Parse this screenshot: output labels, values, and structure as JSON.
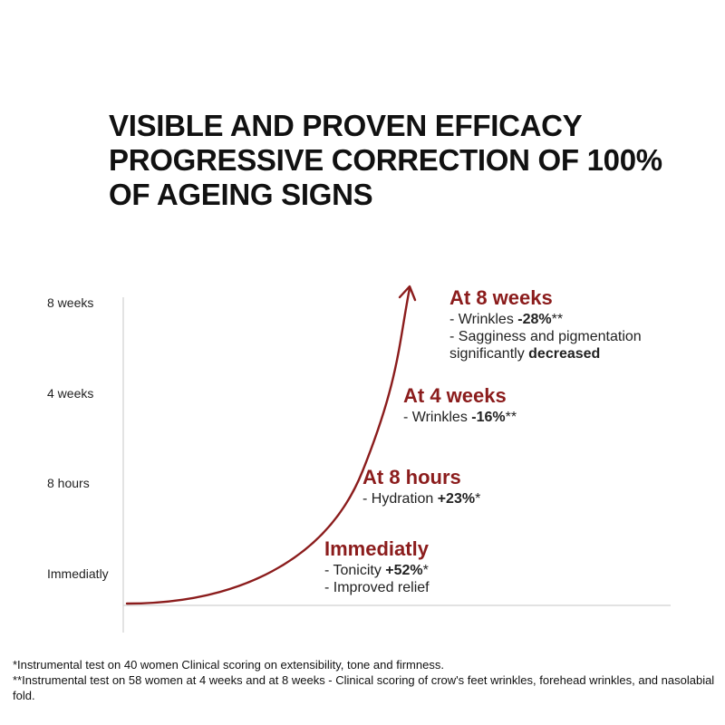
{
  "title_lines": [
    "VISIBLE AND PROVEN EFFICACY",
    "PROGRESSIVE CORRECTION OF 100%",
    "OF AGEING SIGNS"
  ],
  "y_axis_labels": [
    "8 weeks",
    "4 weeks",
    "8 hours",
    "Immediatly"
  ],
  "colors": {
    "accent": "#8b1c1c",
    "axis": "#d0d0d0",
    "text": "#1a1a1a"
  },
  "milestones": [
    {
      "heading": "Immediatly",
      "lines": [
        {
          "text": "- Tonicity ",
          "bold": "+52%",
          "suffix": "*"
        },
        {
          "text": "- Improved relief",
          "bold": "",
          "suffix": ""
        }
      ]
    },
    {
      "heading": "At 8 hours",
      "lines": [
        {
          "text": "- Hydration ",
          "bold": "+23%",
          "suffix": "*"
        }
      ]
    },
    {
      "heading": "At 4 weeks",
      "lines": [
        {
          "text": "- Wrinkles ",
          "bold": "-16%",
          "suffix": "**"
        }
      ]
    },
    {
      "heading": "At 8 weeks",
      "lines": [
        {
          "text": "- Wrinkles ",
          "bold": "-28%",
          "suffix": "**"
        },
        {
          "text": "- Sagginess and pigmentation",
          "bold": "",
          "suffix": ""
        },
        {
          "text": "significantly ",
          "bold": "decreased",
          "suffix": ""
        }
      ]
    }
  ],
  "footnotes": [
    "*Instrumental test on 40 women Clinical scoring on extensibility, tone and firmness.",
    "**Instrumental test on 58 women at 4 weeks and at 8 weeks - Clinical scoring of crow's feet wrinkles, forehead wrinkles, and nasolabial fold."
  ]
}
